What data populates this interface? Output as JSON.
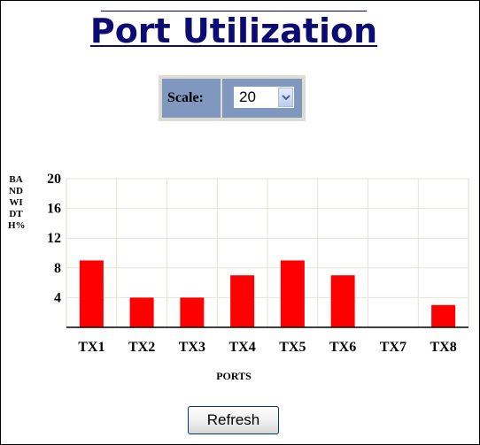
{
  "page": {
    "title": "Port Utilization",
    "scale_label": "Scale:",
    "scale_value": "20",
    "refresh_label": "Refresh"
  },
  "icons": {
    "dropdown": "chevron-down-icon"
  },
  "chart_data": {
    "type": "bar",
    "categories": [
      "TX1",
      "TX2",
      "TX3",
      "TX4",
      "TX5",
      "TX6",
      "TX7",
      "TX8"
    ],
    "values": [
      9,
      4,
      4,
      7,
      9,
      7,
      0,
      3
    ],
    "ylabel": "BANDWIDTH%",
    "xlabel": "PORTS",
    "ylim": [
      0,
      20
    ],
    "yticks": [
      4,
      8,
      12,
      16,
      20
    ],
    "grid": true,
    "bar_color": "#ff0000"
  }
}
